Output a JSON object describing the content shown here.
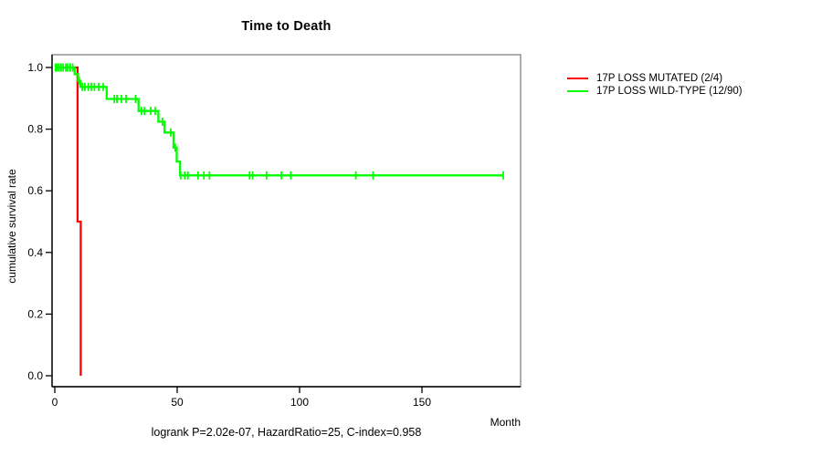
{
  "chart_data": {
    "type": "line",
    "subtype": "kaplan_meier_step",
    "title": "Time to Death",
    "xlabel": "Month",
    "ylabel": "cumulative survival rate",
    "xlim": [
      0,
      190
    ],
    "ylim": [
      0.0,
      1.0
    ],
    "x_ticks": [
      0,
      50,
      100,
      150
    ],
    "y_ticks": [
      1.0,
      0.8,
      0.6,
      0.4,
      0.2,
      0.0
    ],
    "grid": false,
    "legend_position": "right-outside",
    "annotation": "logrank P=2.02e-07, HazardRatio=25, C-index=0.958",
    "axis_colors": {
      "box": "#8c8c8c",
      "axis": "#000000"
    },
    "series": [
      {
        "name": "17P LOSS MUTATED (2/4)",
        "color": "#ff0000",
        "steps": [
          [
            0,
            1.0
          ],
          [
            9.3,
            1.0
          ],
          [
            9.3,
            0.5
          ],
          [
            10.6,
            0.5
          ],
          [
            10.6,
            0.0
          ]
        ],
        "censors": []
      },
      {
        "name": "17P LOSS WILD-TYPE (12/90)",
        "color": "#00ff00",
        "steps": [
          [
            0,
            1.0
          ],
          [
            8.1,
            1.0
          ],
          [
            8.1,
            0.978
          ],
          [
            9.5,
            0.978
          ],
          [
            9.5,
            0.957
          ],
          [
            10.5,
            0.957
          ],
          [
            10.5,
            0.937
          ],
          [
            21.2,
            0.937
          ],
          [
            21.2,
            0.898
          ],
          [
            34.2,
            0.898
          ],
          [
            34.2,
            0.859
          ],
          [
            42.3,
            0.859
          ],
          [
            42.3,
            0.824
          ],
          [
            44.8,
            0.824
          ],
          [
            44.8,
            0.789
          ],
          [
            48.5,
            0.789
          ],
          [
            48.5,
            0.74
          ],
          [
            49.8,
            0.74
          ],
          [
            49.8,
            0.695
          ],
          [
            51.2,
            0.695
          ],
          [
            51.2,
            0.65
          ],
          [
            183.2,
            0.65
          ]
        ],
        "censors": [
          [
            0.3,
            1.0
          ],
          [
            0.9,
            1.0
          ],
          [
            1.7,
            1.0
          ],
          [
            2.6,
            1.0
          ],
          [
            3.4,
            1.0
          ],
          [
            4.5,
            1.0
          ],
          [
            5.2,
            1.0
          ],
          [
            6.3,
            1.0
          ],
          [
            7.3,
            1.0
          ],
          [
            9.9,
            0.957
          ],
          [
            11.2,
            0.937
          ],
          [
            12.3,
            0.937
          ],
          [
            13.7,
            0.937
          ],
          [
            14.9,
            0.937
          ],
          [
            16.2,
            0.937
          ],
          [
            17.9,
            0.937
          ],
          [
            19.8,
            0.937
          ],
          [
            24.3,
            0.898
          ],
          [
            25.4,
            0.898
          ],
          [
            27.2,
            0.898
          ],
          [
            29.1,
            0.898
          ],
          [
            33.0,
            0.898
          ],
          [
            35.4,
            0.859
          ],
          [
            36.6,
            0.859
          ],
          [
            39.2,
            0.859
          ],
          [
            41.0,
            0.859
          ],
          [
            44.0,
            0.824
          ],
          [
            47.4,
            0.789
          ],
          [
            49.2,
            0.74
          ],
          [
            51.4,
            0.65
          ],
          [
            53.1,
            0.65
          ],
          [
            54.4,
            0.65
          ],
          [
            58.5,
            0.65
          ],
          [
            60.9,
            0.65
          ],
          [
            63.2,
            0.65
          ],
          [
            79.6,
            0.65
          ],
          [
            80.8,
            0.65
          ],
          [
            86.5,
            0.65
          ],
          [
            92.6,
            0.65
          ],
          [
            96.4,
            0.65
          ],
          [
            123.0,
            0.65
          ],
          [
            130.0,
            0.65
          ],
          [
            183.2,
            0.65
          ]
        ]
      }
    ]
  }
}
